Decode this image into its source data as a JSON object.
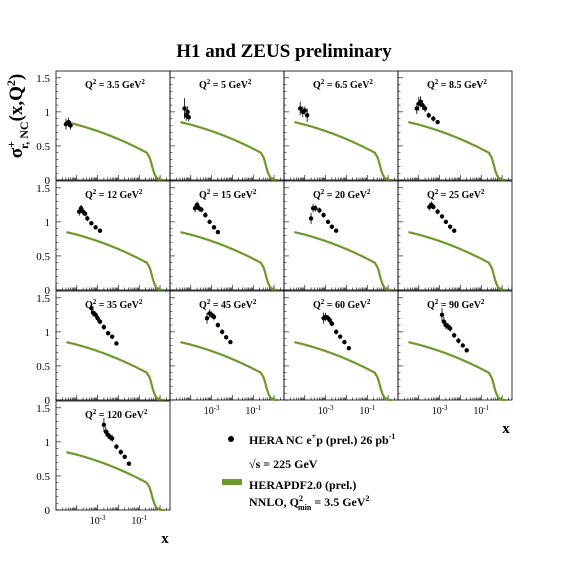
{
  "chart_data": {
    "type": "scatter",
    "title": "H1 and ZEUS preliminary",
    "ylabel": {
      "sigma": "σ",
      "sup": "+",
      "sub": "r, NC",
      "rest": "(x,Q",
      "rest_sup": "2",
      "close": ")"
    },
    "xlabel": "x",
    "yticks": [
      "0",
      "0.5",
      "1",
      "1.5"
    ],
    "xticks": [
      {
        "base": "10",
        "exp": "-3",
        "value": 0.001
      },
      {
        "base": "10",
        "exp": "-1",
        "value": 0.1
      }
    ],
    "xlog": true,
    "xlim": [
      1e-05,
      3.0
    ],
    "ylim": [
      0,
      1.6
    ],
    "grid": false,
    "legend_placement": "bottom-right",
    "legend": {
      "data_label": "HERA NC e",
      "data_sup": "+",
      "data_rest": "p (prel.) 26 pb",
      "data_sup2": "-1",
      "energy_root": "√s",
      "energy_rest": " = 225 GeV",
      "curve_label": "HERAPDF2.0 (prel.)",
      "curve_sub_a": "NNLO, Q",
      "curve_sub_sup": "2",
      "curve_sub_sub": "min",
      "curve_sub_rest": " = 3.5 GeV",
      "curve_sub_sup2": "2"
    },
    "colors": {
      "data": "#000000",
      "curve": "#6b9a2a"
    },
    "panels": [
      {
        "label": "Q",
        "q2": "3.5",
        "unit": "GeV",
        "points": [
          {
            "x": 3e-05,
            "y": 0.82,
            "e": 0.08
          },
          {
            "x": 4e-05,
            "y": 0.85,
            "e": 0.07
          },
          {
            "x": 5e-05,
            "y": 0.8,
            "e": 0.06
          }
        ]
      },
      {
        "label": "Q",
        "q2": "5",
        "unit": "GeV",
        "points": [
          {
            "x": 5e-05,
            "y": 1.05,
            "e": 0.15
          },
          {
            "x": 6e-05,
            "y": 0.95,
            "e": 0.08
          },
          {
            "x": 7e-05,
            "y": 1.0,
            "e": 0.08
          },
          {
            "x": 8e-05,
            "y": 0.92,
            "e": 0.06
          }
        ]
      },
      {
        "label": "Q",
        "q2": "6.5",
        "unit": "GeV",
        "points": [
          {
            "x": 6e-05,
            "y": 1.05,
            "e": 0.1
          },
          {
            "x": 8e-05,
            "y": 1.0,
            "e": 0.08
          },
          {
            "x": 0.0001,
            "y": 1.02,
            "e": 0.06
          },
          {
            "x": 0.00013,
            "y": 0.95,
            "e": 0.1
          }
        ]
      },
      {
        "label": "Q",
        "q2": "8.5",
        "unit": "GeV",
        "points": [
          {
            "x": 8e-05,
            "y": 1.05,
            "e": 0.08
          },
          {
            "x": 0.0001,
            "y": 1.12,
            "e": 0.1
          },
          {
            "x": 0.00012,
            "y": 1.15,
            "e": 0.08
          },
          {
            "x": 0.00015,
            "y": 1.1,
            "e": 0.07
          },
          {
            "x": 0.0002,
            "y": 1.05,
            "e": 0.05
          },
          {
            "x": 0.0003,
            "y": 0.95,
            "e": 0.04
          },
          {
            "x": 0.0005,
            "y": 0.9,
            "e": 0.04
          },
          {
            "x": 0.0008,
            "y": 0.85,
            "e": 0.03
          }
        ]
      },
      {
        "label": "Q",
        "q2": "12",
        "unit": "GeV",
        "points": [
          {
            "x": 0.00013,
            "y": 1.15,
            "e": 0.06
          },
          {
            "x": 0.00016,
            "y": 1.2,
            "e": 0.05
          },
          {
            "x": 0.0002,
            "y": 1.15,
            "e": 0.05
          },
          {
            "x": 0.00025,
            "y": 1.12,
            "e": 0.04
          },
          {
            "x": 0.00032,
            "y": 1.05,
            "e": 0.04
          },
          {
            "x": 0.0005,
            "y": 0.98,
            "e": 0.03
          },
          {
            "x": 0.0008,
            "y": 0.92,
            "e": 0.03
          },
          {
            "x": 0.0013,
            "y": 0.87,
            "e": 0.03
          }
        ]
      },
      {
        "label": "Q",
        "q2": "15",
        "unit": "GeV",
        "points": [
          {
            "x": 0.00016,
            "y": 1.2,
            "e": 0.06
          },
          {
            "x": 0.0002,
            "y": 1.25,
            "e": 0.05
          },
          {
            "x": 0.00025,
            "y": 1.2,
            "e": 0.05
          },
          {
            "x": 0.00032,
            "y": 1.18,
            "e": 0.04
          },
          {
            "x": 0.0005,
            "y": 1.1,
            "e": 0.04
          },
          {
            "x": 0.0008,
            "y": 1.0,
            "e": 0.03
          },
          {
            "x": 0.0013,
            "y": 0.92,
            "e": 0.03
          },
          {
            "x": 0.002,
            "y": 0.85,
            "e": 0.03
          }
        ]
      },
      {
        "label": "Q",
        "q2": "20",
        "unit": "GeV",
        "points": [
          {
            "x": 0.0002,
            "y": 1.05,
            "e": 0.08
          },
          {
            "x": 0.00025,
            "y": 1.2,
            "e": 0.06
          },
          {
            "x": 0.00032,
            "y": 1.2,
            "e": 0.05
          },
          {
            "x": 0.0005,
            "y": 1.17,
            "e": 0.04
          },
          {
            "x": 0.0008,
            "y": 1.1,
            "e": 0.04
          },
          {
            "x": 0.0013,
            "y": 1.0,
            "e": 0.03
          },
          {
            "x": 0.002,
            "y": 0.93,
            "e": 0.03
          },
          {
            "x": 0.0032,
            "y": 0.87,
            "e": 0.03
          }
        ]
      },
      {
        "label": "Q",
        "q2": "25",
        "unit": "GeV",
        "points": [
          {
            "x": 0.00032,
            "y": 1.22,
            "e": 0.05
          },
          {
            "x": 0.0004,
            "y": 1.25,
            "e": 0.05
          },
          {
            "x": 0.0005,
            "y": 1.22,
            "e": 0.04
          },
          {
            "x": 0.0008,
            "y": 1.15,
            "e": 0.04
          },
          {
            "x": 0.0013,
            "y": 1.08,
            "e": 0.03
          },
          {
            "x": 0.002,
            "y": 1.0,
            "e": 0.03
          },
          {
            "x": 0.0032,
            "y": 0.93,
            "e": 0.03
          },
          {
            "x": 0.005,
            "y": 0.87,
            "e": 0.03
          }
        ]
      },
      {
        "label": "Q",
        "q2": "35",
        "unit": "GeV",
        "points": [
          {
            "x": 0.0005,
            "y": 1.35,
            "e": 0.08
          },
          {
            "x": 0.0006,
            "y": 1.28,
            "e": 0.06
          },
          {
            "x": 0.0008,
            "y": 1.25,
            "e": 0.05
          },
          {
            "x": 0.001,
            "y": 1.2,
            "e": 0.05
          },
          {
            "x": 0.0013,
            "y": 1.15,
            "e": 0.04
          },
          {
            "x": 0.002,
            "y": 1.07,
            "e": 0.04
          },
          {
            "x": 0.0032,
            "y": 0.98,
            "e": 0.03
          },
          {
            "x": 0.005,
            "y": 0.93,
            "e": 0.03
          },
          {
            "x": 0.008,
            "y": 0.83,
            "e": 0.03
          }
        ]
      },
      {
        "label": "Q",
        "q2": "45",
        "unit": "GeV",
        "points": [
          {
            "x": 0.0006,
            "y": 1.2,
            "e": 0.08
          },
          {
            "x": 0.0008,
            "y": 1.27,
            "e": 0.06
          },
          {
            "x": 0.001,
            "y": 1.25,
            "e": 0.05
          },
          {
            "x": 0.0013,
            "y": 1.22,
            "e": 0.05
          },
          {
            "x": 0.002,
            "y": 1.1,
            "e": 0.04
          },
          {
            "x": 0.0032,
            "y": 1.0,
            "e": 0.04
          },
          {
            "x": 0.005,
            "y": 0.92,
            "e": 0.03
          },
          {
            "x": 0.008,
            "y": 0.85,
            "e": 0.03
          }
        ]
      },
      {
        "label": "Q",
        "q2": "60",
        "unit": "GeV",
        "points": [
          {
            "x": 0.0008,
            "y": 1.2,
            "e": 0.08
          },
          {
            "x": 0.001,
            "y": 1.22,
            "e": 0.06
          },
          {
            "x": 0.0013,
            "y": 1.2,
            "e": 0.05
          },
          {
            "x": 0.0016,
            "y": 1.17,
            "e": 0.05
          },
          {
            "x": 0.002,
            "y": 1.12,
            "e": 0.04
          },
          {
            "x": 0.0032,
            "y": 1.0,
            "e": 0.04
          },
          {
            "x": 0.005,
            "y": 0.93,
            "e": 0.03
          },
          {
            "x": 0.008,
            "y": 0.85,
            "e": 0.03
          },
          {
            "x": 0.013,
            "y": 0.76,
            "e": 0.03
          }
        ]
      },
      {
        "label": "Q",
        "q2": "90",
        "unit": "GeV",
        "points": [
          {
            "x": 0.0013,
            "y": 1.25,
            "e": 0.1
          },
          {
            "x": 0.0016,
            "y": 1.15,
            "e": 0.07
          },
          {
            "x": 0.002,
            "y": 1.1,
            "e": 0.06
          },
          {
            "x": 0.0025,
            "y": 1.08,
            "e": 0.05
          },
          {
            "x": 0.0032,
            "y": 1.05,
            "e": 0.05
          },
          {
            "x": 0.005,
            "y": 0.95,
            "e": 0.04
          },
          {
            "x": 0.008,
            "y": 0.87,
            "e": 0.04
          },
          {
            "x": 0.013,
            "y": 0.8,
            "e": 0.03
          },
          {
            "x": 0.02,
            "y": 0.73,
            "e": 0.03
          }
        ]
      },
      {
        "label": "Q",
        "q2": "120",
        "unit": "GeV",
        "points": [
          {
            "x": 0.002,
            "y": 1.25,
            "e": 0.1
          },
          {
            "x": 0.0025,
            "y": 1.15,
            "e": 0.07
          },
          {
            "x": 0.0032,
            "y": 1.1,
            "e": 0.06
          },
          {
            "x": 0.004,
            "y": 1.07,
            "e": 0.05
          },
          {
            "x": 0.005,
            "y": 1.05,
            "e": 0.05
          },
          {
            "x": 0.008,
            "y": 0.93,
            "e": 0.04
          },
          {
            "x": 0.013,
            "y": 0.85,
            "e": 0.04
          },
          {
            "x": 0.02,
            "y": 0.78,
            "e": 0.03
          },
          {
            "x": 0.032,
            "y": 0.68,
            "e": 0.03
          }
        ]
      }
    ]
  }
}
